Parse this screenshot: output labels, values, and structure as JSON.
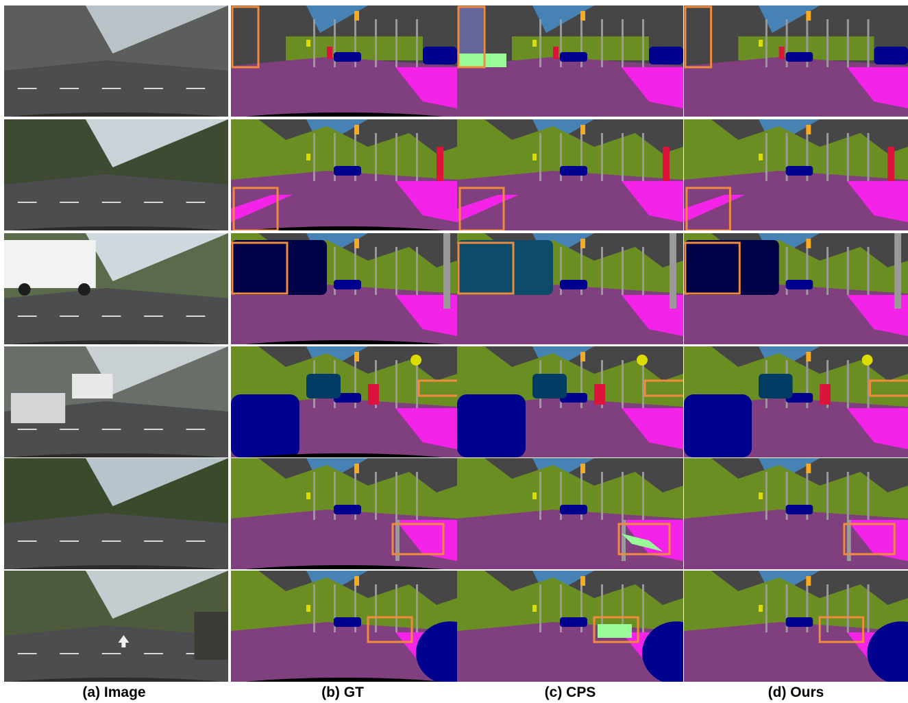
{
  "columns": [
    {
      "key": "image",
      "caption": "(a) Image"
    },
    {
      "key": "gt",
      "caption": "(b) GT"
    },
    {
      "key": "cps",
      "caption": "(c) CPS"
    },
    {
      "key": "ours",
      "caption": "(d) Ours"
    }
  ],
  "rows": [
    {
      "scene": "street-buildings-left",
      "highlight": "sky-building-left"
    },
    {
      "scene": "tree-lined-street",
      "highlight": "sidewalk-bottom-left"
    },
    {
      "scene": "white-truck",
      "highlight": "truck-body"
    },
    {
      "scene": "bus-intersection",
      "highlight": "wall-right"
    },
    {
      "scene": "empty-road-trees",
      "highlight": "sidewalk-bottom-right"
    },
    {
      "scene": "road-arrow-car",
      "highlight": "vegetation-right-center"
    }
  ],
  "colors": {
    "road": "#804080",
    "sidewalk": "#f423e8",
    "building": "#464646",
    "vegetation": "#6b8e23",
    "sky": "#4682b4",
    "car": "#00008e",
    "truck": "#000046",
    "bus": "#003c64",
    "person": "#dc143c",
    "rider": "#ff0000",
    "pole": "#999999",
    "traffic_light": "#faaa1e",
    "traffic_sign": "#dcdc00",
    "terrain": "#98fb98",
    "wall": "#66669c",
    "fence": "#be9999",
    "ego_vehicle": "#000000",
    "highlight_box": "#f08a3c"
  }
}
